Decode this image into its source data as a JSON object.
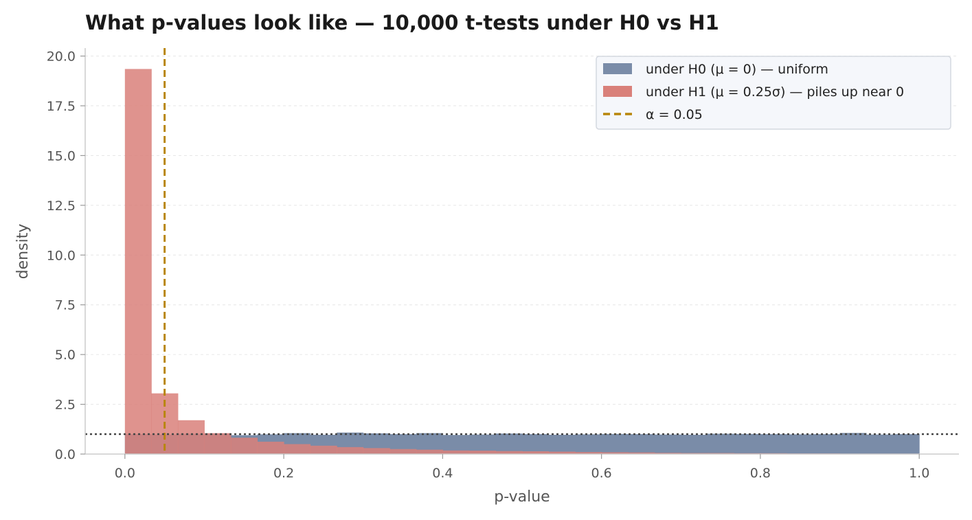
{
  "chart_data": {
    "type": "bar",
    "title": "What p-values look like — 10,000 t-tests under H0 vs H1",
    "xlabel": "p-value",
    "ylabel": "density",
    "xlim": [
      -0.05,
      1.05
    ],
    "ylim": [
      0,
      20.4
    ],
    "xticks": [
      0.0,
      0.2,
      0.4,
      0.6,
      0.8,
      1.0
    ],
    "xtick_labels": [
      "0.0",
      "0.2",
      "0.4",
      "0.6",
      "0.8",
      "1.0"
    ],
    "yticks": [
      0.0,
      2.5,
      5.0,
      7.5,
      10.0,
      12.5,
      15.0,
      17.5,
      20.0
    ],
    "ytick_labels": [
      "0.0",
      "2.5",
      "5.0",
      "7.5",
      "10.0",
      "12.5",
      "15.0",
      "17.5",
      "20.0"
    ],
    "grid": "horizontal",
    "legend_position": "top-right",
    "bin_edges": [
      0.0,
      0.0333,
      0.0667,
      0.1,
      0.1333,
      0.1667,
      0.2,
      0.2333,
      0.2667,
      0.3,
      0.3333,
      0.3667,
      0.4,
      0.4333,
      0.4667,
      0.5,
      0.5333,
      0.5667,
      0.6,
      0.6333,
      0.6667,
      0.7,
      0.7333,
      0.7667,
      0.8,
      0.8333,
      0.8667,
      0.9,
      0.9333,
      0.9667,
      1.0
    ],
    "series": [
      {
        "name": "under H0 (μ = 0) — uniform",
        "color": "#7a8ca8",
        "values": [
          1.0,
          0.98,
          1.02,
          1.03,
          0.95,
          0.99,
          1.05,
          0.97,
          1.08,
          1.04,
          1.0,
          1.05,
          0.96,
          0.98,
          1.03,
          1.0,
          0.97,
          0.99,
          1.01,
          1.0,
          0.98,
          0.97,
          1.02,
          1.01,
          1.0,
          0.99,
          1.0,
          1.06,
          0.98,
          1.0
        ]
      },
      {
        "name": "under H1 (μ = 0.25σ) — piles up near 0",
        "color": "#d9807a",
        "values": [
          19.35,
          3.05,
          1.7,
          1.05,
          0.82,
          0.62,
          0.5,
          0.42,
          0.35,
          0.3,
          0.25,
          0.22,
          0.18,
          0.17,
          0.15,
          0.14,
          0.12,
          0.1,
          0.09,
          0.08,
          0.06,
          0.05,
          0.05,
          0.04,
          0.04,
          0.03,
          0.03,
          0.02,
          0.02,
          0.02
        ]
      }
    ],
    "reference_lines": [
      {
        "name": "α = 0.05",
        "orientation": "vertical",
        "value": 0.05,
        "color": "#b8860b",
        "style": "dashed"
      },
      {
        "orientation": "horizontal",
        "value": 1.0,
        "color": "#444444",
        "style": "dotted"
      }
    ]
  }
}
